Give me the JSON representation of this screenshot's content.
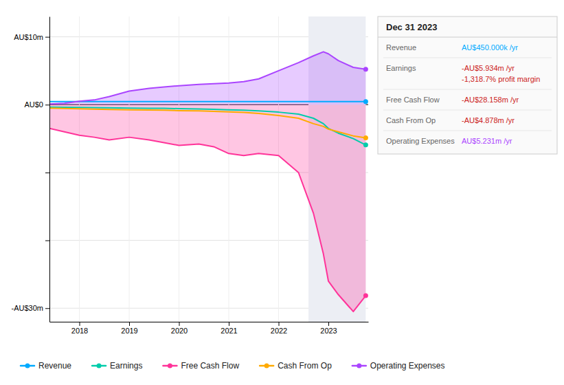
{
  "chart_data": {
    "type": "line",
    "x": [
      2017.4,
      2017.7,
      2018.0,
      2018.3,
      2018.6,
      2019.0,
      2019.4,
      2019.7,
      2020.0,
      2020.4,
      2020.7,
      2021.0,
      2021.3,
      2021.6,
      2022.0,
      2022.4,
      2022.7,
      2022.9,
      2023.0,
      2023.2,
      2023.5,
      2023.75
    ],
    "xlim": [
      2017.4,
      2023.8
    ],
    "xticks": [
      2018,
      2019,
      2020,
      2021,
      2022,
      2023
    ],
    "ylim": [
      -32000000,
      13000000
    ],
    "yticks": [
      {
        "value": 10000000,
        "label": "AU$10m"
      },
      {
        "value": 0,
        "label": "AU$0"
      },
      {
        "value": -10000000,
        "label": null
      },
      {
        "value": -20000000,
        "label": null
      },
      {
        "value": -30000000,
        "label": "-AU$30m"
      }
    ],
    "grid": true,
    "legend": "bottom",
    "highlight": [
      2022.6,
      2023.75
    ],
    "series": [
      {
        "name": "Revenue",
        "type": "line",
        "color": "#00aaff",
        "values": [
          450000,
          450000,
          450000,
          450000,
          450000,
          450000,
          450000,
          450000,
          450000,
          450000,
          450000,
          450000,
          450000,
          450000,
          450000,
          450000,
          450000,
          450000,
          450000,
          450000,
          450000,
          450000
        ]
      },
      {
        "name": "Earnings",
        "type": "line",
        "color": "#00ccaa",
        "values": [
          -350000,
          -380000,
          -400000,
          -430000,
          -460000,
          -500000,
          -520000,
          -540000,
          -580000,
          -620000,
          -680000,
          -750000,
          -820000,
          -900000,
          -1100000,
          -1400000,
          -2000000,
          -2800000,
          -3500000,
          -4200000,
          -5000000,
          -5934000
        ]
      },
      {
        "name": "Free Cash Flow",
        "type": "area",
        "color": "#ff3399",
        "values": [
          -3500000,
          -4000000,
          -4500000,
          -4800000,
          -5200000,
          -4800000,
          -5200000,
          -5600000,
          -6000000,
          -5800000,
          -6200000,
          -7200000,
          -7500000,
          -7200000,
          -7500000,
          -10000000,
          -16000000,
          -22000000,
          -26000000,
          -28000000,
          -30500000,
          -28158000
        ]
      },
      {
        "name": "Cash From Op",
        "type": "line",
        "color": "#ffaa00",
        "values": [
          -500000,
          -550000,
          -600000,
          -660000,
          -700000,
          -750000,
          -780000,
          -820000,
          -880000,
          -920000,
          -980000,
          -1050000,
          -1150000,
          -1300000,
          -1600000,
          -2000000,
          -2800000,
          -3200000,
          -3600000,
          -4000000,
          -4600000,
          -4878000
        ]
      },
      {
        "name": "Operating Expenses",
        "type": "area",
        "color": "#aa44ff",
        "values": [
          100000,
          200000,
          500000,
          700000,
          1200000,
          2000000,
          2400000,
          2600000,
          2800000,
          3000000,
          3100000,
          3200000,
          3400000,
          3800000,
          5000000,
          6200000,
          7200000,
          7800000,
          7500000,
          6500000,
          5500000,
          5231000
        ]
      }
    ],
    "info_box": {
      "title": "Dec 31 2023",
      "rows": [
        {
          "label": "Revenue",
          "value": "AU$450.000k /yr",
          "color": "#00aaff"
        },
        {
          "label": "Earnings",
          "value": "-AU$5.934m /yr",
          "color": "#cc2222",
          "extra": "-1,318.7% profit margin",
          "extra_color": "#cc2222"
        },
        {
          "label": "Free Cash Flow",
          "value": "-AU$28.158m /yr",
          "color": "#cc2222"
        },
        {
          "label": "Cash From Op",
          "value": "-AU$4.878m /yr",
          "color": "#cc2222"
        },
        {
          "label": "Operating Expenses",
          "value": "AU$5.231m /yr",
          "color": "#aa44ff"
        }
      ]
    }
  }
}
